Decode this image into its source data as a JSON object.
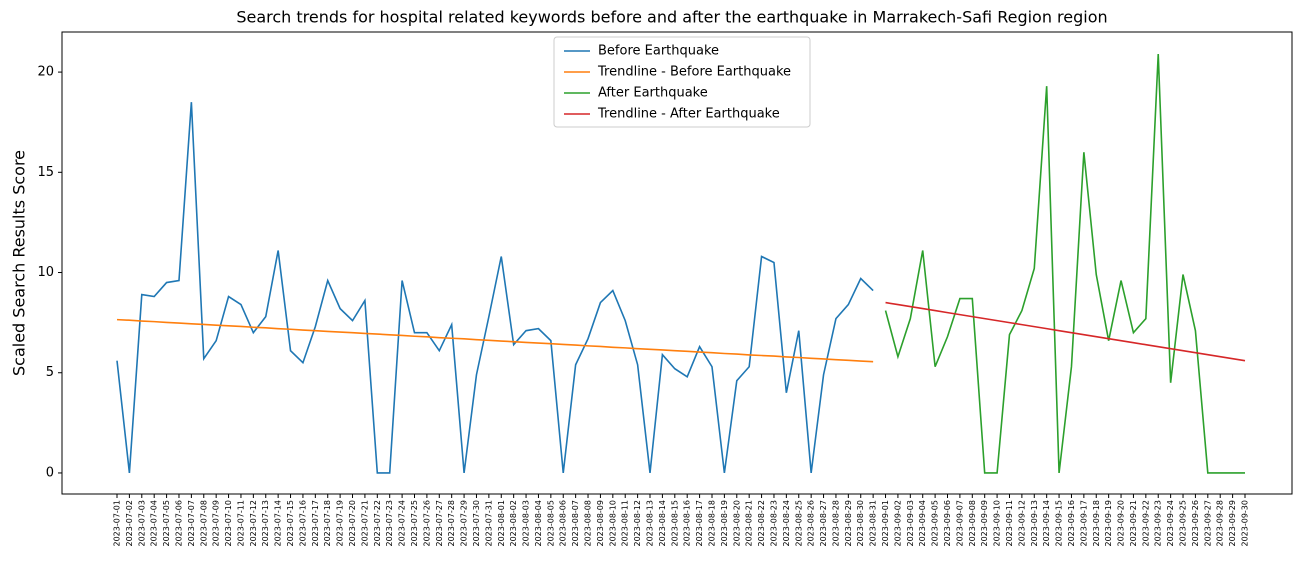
{
  "chart_data": {
    "type": "line",
    "title": "Search trends for hospital related keywords before and after the earthquake in Marrakech-Safi Region region",
    "y_label": "Scaled Search Results Score",
    "categories": [
      "2023-07-01",
      "2023-07-02",
      "2023-07-03",
      "2023-07-04",
      "2023-07-05",
      "2023-07-06",
      "2023-07-07",
      "2023-07-08",
      "2023-07-09",
      "2023-07-10",
      "2023-07-11",
      "2023-07-12",
      "2023-07-13",
      "2023-07-14",
      "2023-07-15",
      "2023-07-16",
      "2023-07-17",
      "2023-07-18",
      "2023-07-19",
      "2023-07-20",
      "2023-07-21",
      "2023-07-22",
      "2023-07-23",
      "2023-07-24",
      "2023-07-25",
      "2023-07-26",
      "2023-07-27",
      "2023-07-28",
      "2023-07-29",
      "2023-07-30",
      "2023-07-31",
      "2023-08-01",
      "2023-08-02",
      "2023-08-03",
      "2023-08-04",
      "2023-08-05",
      "2023-08-06",
      "2023-08-07",
      "2023-08-08",
      "2023-08-09",
      "2023-08-10",
      "2023-08-11",
      "2023-08-12",
      "2023-08-13",
      "2023-08-14",
      "2023-08-15",
      "2023-08-16",
      "2023-08-17",
      "2023-08-18",
      "2023-08-19",
      "2023-08-20",
      "2023-08-21",
      "2023-08-22",
      "2023-08-23",
      "2023-08-24",
      "2023-08-25",
      "2023-08-26",
      "2023-08-27",
      "2023-08-28",
      "2023-08-29",
      "2023-08-30",
      "2023-08-31",
      "2023-09-01",
      "2023-09-02",
      "2023-09-03",
      "2023-09-04",
      "2023-09-05",
      "2023-09-06",
      "2023-09-07",
      "2023-09-08",
      "2023-09-09",
      "2023-09-10",
      "2023-09-11",
      "2023-09-12",
      "2023-09-13",
      "2023-09-14",
      "2023-09-15",
      "2023-09-16",
      "2023-09-17",
      "2023-09-18",
      "2023-09-19",
      "2023-09-20",
      "2023-09-21",
      "2023-09-22",
      "2023-09-23",
      "2023-09-24",
      "2023-09-25",
      "2023-09-26",
      "2023-09-27",
      "2023-09-28",
      "2023-09-29",
      "2023-09-30"
    ],
    "series": [
      {
        "name": "Before Earthquake",
        "color": "#1f77b4",
        "values": [
          5.6,
          0,
          8.9,
          8.8,
          9.5,
          9.6,
          18.5,
          5.7,
          6.6,
          8.8,
          8.4,
          7.0,
          7.8,
          11.1,
          6.1,
          5.5,
          7.3,
          9.6,
          8.2,
          7.6,
          8.6,
          0,
          0,
          9.6,
          7.0,
          7.0,
          6.1,
          7.4,
          0,
          4.9,
          7.8,
          10.8,
          6.4,
          7.1,
          7.2,
          6.6,
          0,
          5.4,
          6.7,
          8.5,
          9.1,
          7.6,
          5.4,
          0,
          5.9,
          5.2,
          4.8,
          6.3,
          5.3,
          0,
          4.6,
          5.3,
          10.8,
          10.5,
          4.0,
          7.1,
          0,
          4.9,
          7.7,
          8.4,
          9.7,
          9.1,
          null,
          null,
          null,
          null,
          null,
          null,
          null,
          null,
          null,
          null,
          null,
          null,
          null,
          null,
          null,
          null,
          null,
          null,
          null,
          null,
          null,
          null,
          null,
          null,
          null,
          null,
          null,
          null,
          null,
          null
        ]
      },
      {
        "name": "Trendline - Before Earthquake",
        "color": "#ff7f0e",
        "values": [
          7.65,
          7.62,
          7.58,
          7.55,
          7.51,
          7.48,
          7.44,
          7.41,
          7.37,
          7.34,
          7.31,
          7.27,
          7.24,
          7.2,
          7.17,
          7.13,
          7.1,
          7.06,
          7.03,
          7.0,
          6.96,
          6.93,
          6.89,
          6.86,
          6.82,
          6.79,
          6.75,
          6.72,
          6.69,
          6.65,
          6.62,
          6.58,
          6.55,
          6.51,
          6.48,
          6.45,
          6.41,
          6.38,
          6.34,
          6.31,
          6.27,
          6.24,
          6.2,
          6.17,
          6.14,
          6.1,
          6.07,
          6.03,
          6.0,
          5.96,
          5.93,
          5.89,
          5.86,
          5.83,
          5.79,
          5.76,
          5.72,
          5.69,
          5.65,
          5.62,
          5.58,
          5.55,
          null,
          null,
          null,
          null,
          null,
          null,
          null,
          null,
          null,
          null,
          null,
          null,
          null,
          null,
          null,
          null,
          null,
          null,
          null,
          null,
          null,
          null,
          null,
          null,
          null,
          null,
          null,
          null,
          null,
          null
        ]
      },
      {
        "name": "After Earthquake",
        "color": "#2ca02c",
        "values": [
          null,
          null,
          null,
          null,
          null,
          null,
          null,
          null,
          null,
          null,
          null,
          null,
          null,
          null,
          null,
          null,
          null,
          null,
          null,
          null,
          null,
          null,
          null,
          null,
          null,
          null,
          null,
          null,
          null,
          null,
          null,
          null,
          null,
          null,
          null,
          null,
          null,
          null,
          null,
          null,
          null,
          null,
          null,
          null,
          null,
          null,
          null,
          null,
          null,
          null,
          null,
          null,
          null,
          null,
          null,
          null,
          null,
          null,
          null,
          null,
          null,
          null,
          8.1,
          5.8,
          7.7,
          11.1,
          5.3,
          6.8,
          8.7,
          8.7,
          0,
          0,
          6.9,
          8.1,
          10.2,
          19.3,
          0,
          5.3,
          16.0,
          9.9,
          6.6,
          9.6,
          7.0,
          7.7,
          20.9,
          4.5,
          9.9,
          7.1,
          0,
          0,
          0,
          0
        ]
      },
      {
        "name": "Trendline - After Earthquake",
        "color": "#d62728",
        "values": [
          null,
          null,
          null,
          null,
          null,
          null,
          null,
          null,
          null,
          null,
          null,
          null,
          null,
          null,
          null,
          null,
          null,
          null,
          null,
          null,
          null,
          null,
          null,
          null,
          null,
          null,
          null,
          null,
          null,
          null,
          null,
          null,
          null,
          null,
          null,
          null,
          null,
          null,
          null,
          null,
          null,
          null,
          null,
          null,
          null,
          null,
          null,
          null,
          null,
          null,
          null,
          null,
          null,
          null,
          null,
          null,
          null,
          null,
          null,
          null,
          null,
          null,
          8.5,
          8.4,
          8.3,
          8.2,
          8.1,
          8.0,
          7.9,
          7.8,
          7.7,
          7.6,
          7.5,
          7.4,
          7.3,
          7.2,
          7.1,
          7.0,
          6.9,
          6.8,
          6.7,
          6.6,
          6.5,
          6.4,
          6.3,
          6.2,
          6.1,
          6.0,
          5.9,
          5.8,
          5.7,
          5.6
        ]
      }
    ],
    "ylim": [
      -1.05,
      22.0
    ],
    "yticks": [
      0,
      5,
      10,
      15,
      20
    ],
    "grid": false,
    "legend": "upper center"
  }
}
